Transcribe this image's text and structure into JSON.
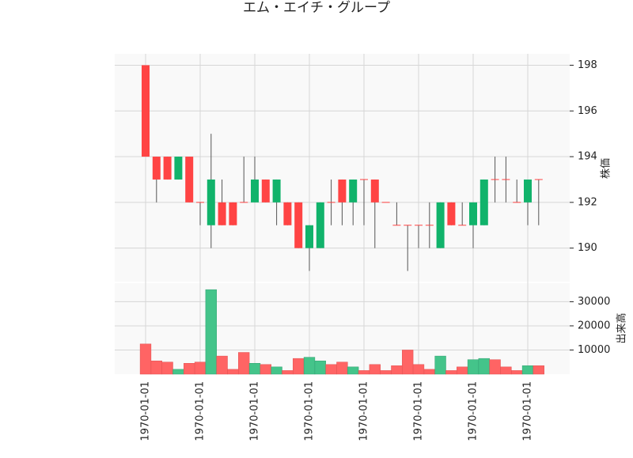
{
  "chart_data": {
    "type": "candlestick",
    "title": "エム・エイチ・グループ",
    "categories": [
      "1970-01-01",
      null,
      null,
      null,
      null,
      "1970-01-01",
      null,
      null,
      null,
      null,
      "1970-01-01",
      null,
      null,
      null,
      null,
      "1970-01-01",
      null,
      null,
      null,
      null,
      "1970-01-01",
      null,
      null,
      null,
      null,
      "1970-01-01",
      null,
      null,
      null,
      null,
      "1970-01-01",
      null,
      null,
      null,
      null,
      "1970-01-01",
      null
    ],
    "open": [
      194,
      193,
      193,
      194,
      192,
      192,
      193,
      191,
      191,
      192,
      193,
      192,
      193,
      191,
      190,
      191,
      192,
      192,
      192,
      193,
      193,
      192,
      192,
      191,
      191,
      191,
      191,
      192,
      191,
      191,
      192,
      193,
      193,
      193,
      192,
      193,
      193
    ],
    "high": [
      198,
      194,
      194,
      194,
      194,
      192,
      195,
      193,
      192,
      194,
      194,
      193,
      193,
      192,
      192,
      191,
      192,
      193,
      193,
      193,
      193,
      193,
      192,
      192,
      191,
      191,
      192,
      192,
      192,
      192,
      192,
      193,
      194,
      194,
      193,
      193,
      193
    ],
    "low": [
      194,
      192,
      193,
      193,
      192,
      191,
      190,
      191,
      191,
      192,
      192,
      192,
      191,
      191,
      190,
      189,
      190,
      191,
      191,
      191,
      191,
      190,
      192,
      191,
      189,
      190,
      190,
      190,
      191,
      191,
      190,
      191,
      192,
      192,
      192,
      191,
      191
    ],
    "close": [
      198,
      194,
      194,
      193,
      194,
      192,
      191,
      192,
      192,
      192,
      192,
      193,
      192,
      192,
      192,
      190,
      190,
      192,
      193,
      192,
      193,
      193,
      192,
      191,
      191,
      191,
      191,
      190,
      192,
      191,
      191,
      191,
      193,
      193,
      192,
      192,
      193
    ],
    "volume": [
      12500,
      5500,
      5000,
      2000,
      4500,
      5000,
      35000,
      7500,
      2000,
      9000,
      4500,
      4000,
      3000,
      1500,
      6500,
      7000,
      5500,
      4000,
      5000,
      3000,
      1500,
      4000,
      1500,
      3500,
      10000,
      4000,
      2000,
      7500,
      1500,
      3000,
      6000,
      6500,
      6000,
      3000,
      1500,
      3500,
      3500
    ],
    "up_color": "#ff4444",
    "down_color": "#11b36b",
    "up_volume_color": "#ff6464",
    "down_volume_color": "#44c48a",
    "ylim": [
      188.5,
      198.5
    ],
    "yticks": [
      190,
      192,
      194,
      196,
      198
    ],
    "ylabel": "株価",
    "volume_ylim": [
      0,
      38000
    ],
    "volume_yticks": [
      10000,
      20000,
      30000
    ],
    "volume_label": "出来高",
    "grid": true
  }
}
